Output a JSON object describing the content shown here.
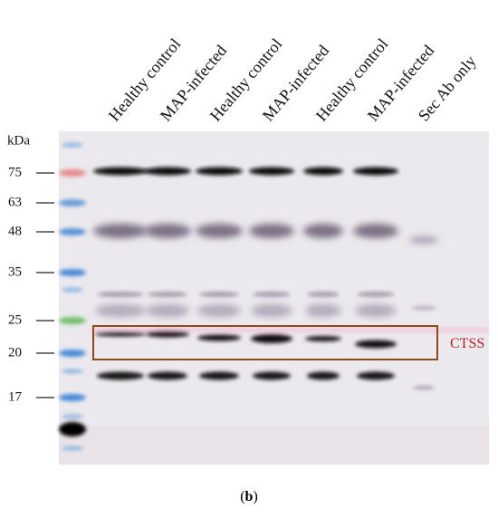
{
  "figure": {
    "lanes": [
      "Healthy control",
      "MAP-infected",
      "Healthy control",
      "MAP-infected",
      "Healthy control",
      "MAP-infected",
      "Sec Ab only"
    ],
    "unit_label": "kDa",
    "markers": [
      "75",
      "63",
      "48",
      "35",
      "25",
      "20",
      "17"
    ],
    "annotation": "CTSS",
    "caption": {
      "open": "(",
      "letter": "b",
      "close": ")"
    }
  }
}
